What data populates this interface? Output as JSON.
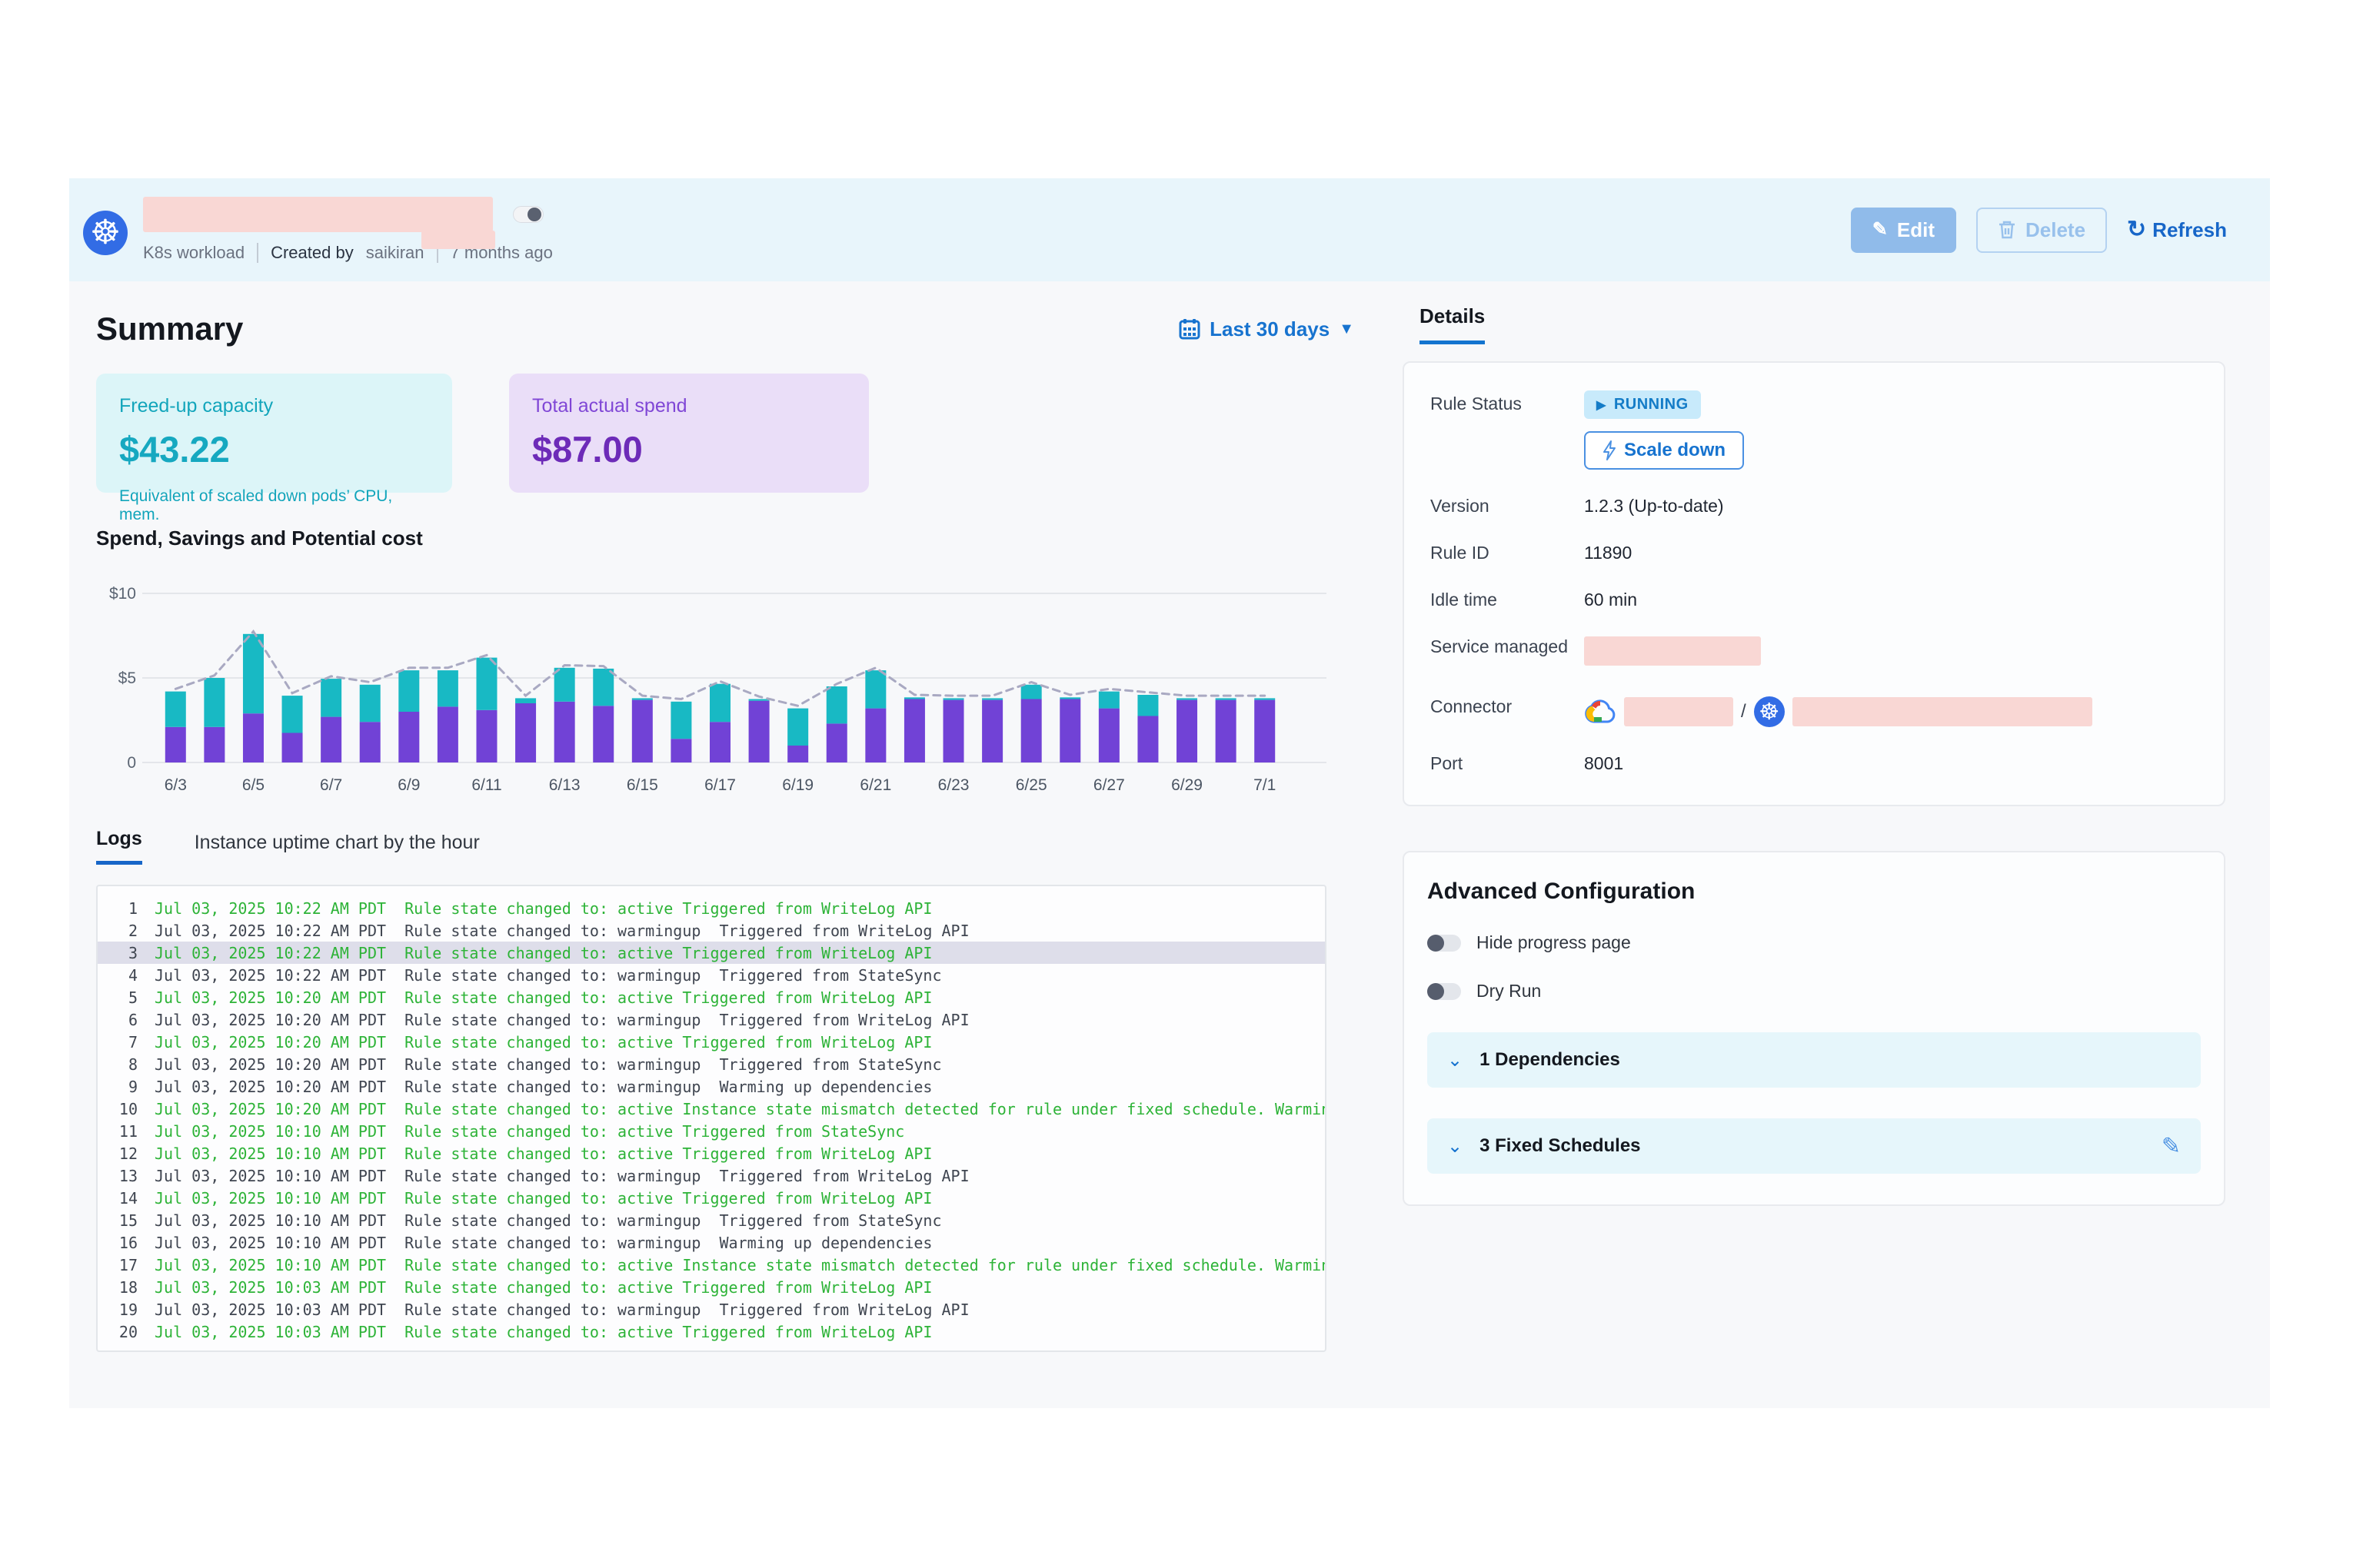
{
  "header": {
    "workload_type": "K8s workload",
    "created_by_label": "Created by",
    "created_by": "saikiran",
    "age": "7 months ago",
    "edit_label": "Edit",
    "delete_label": "Delete",
    "refresh_label": "Refresh"
  },
  "summary": {
    "title": "Summary",
    "date_range": "Last 30 days",
    "cards": {
      "freed": {
        "label": "Freed-up capacity",
        "value": "$43.22",
        "caption": "Equivalent of scaled down pods’ CPU, mem."
      },
      "spend": {
        "label": "Total actual spend",
        "value": "$87.00"
      }
    }
  },
  "chart_data": {
    "type": "bar",
    "title": "Spend, Savings and Potential cost",
    "stacked": true,
    "x": [
      "6/3",
      "6/4",
      "6/5",
      "6/6",
      "6/7",
      "6/8",
      "6/9",
      "6/10",
      "6/11",
      "6/12",
      "6/13",
      "6/14",
      "6/15",
      "6/16",
      "6/17",
      "6/18",
      "6/19",
      "6/20",
      "6/21",
      "6/22",
      "6/23",
      "6/24",
      "6/25",
      "6/26",
      "6/27",
      "6/28",
      "6/29",
      "6/30",
      "7/1"
    ],
    "x_tick_labels": [
      "6/3",
      "6/5",
      "6/7",
      "6/9",
      "6/11",
      "6/13",
      "6/15",
      "6/17",
      "6/19",
      "6/21",
      "6/23",
      "6/25",
      "6/27",
      "6/29",
      "7/1"
    ],
    "series": [
      {
        "name": "Spend",
        "color": "#7142d6",
        "values": [
          2.1,
          2.1,
          2.9,
          1.75,
          2.7,
          2.4,
          3.0,
          3.3,
          3.1,
          3.5,
          3.6,
          3.35,
          3.7,
          1.4,
          2.4,
          3.65,
          1.0,
          2.3,
          3.2,
          3.75,
          3.7,
          3.7,
          3.75,
          3.75,
          3.2,
          2.75,
          3.7,
          3.7,
          3.7
        ]
      },
      {
        "name": "Savings",
        "color": "#18b9c4",
        "values": [
          2.1,
          2.9,
          4.7,
          2.2,
          2.25,
          2.2,
          2.45,
          2.15,
          3.1,
          0.3,
          2.0,
          2.2,
          0.1,
          2.2,
          2.25,
          0.1,
          2.2,
          2.2,
          2.25,
          0.1,
          0.1,
          0.1,
          0.85,
          0.1,
          1.0,
          1.25,
          0.1,
          0.1,
          0.1
        ]
      },
      {
        "name": "Potential cost",
        "type": "dashed-line",
        "color": "#a9a9c2",
        "values": [
          4.35,
          5.15,
          7.75,
          4.1,
          5.1,
          4.75,
          5.6,
          5.6,
          6.35,
          3.95,
          5.75,
          5.7,
          3.95,
          3.75,
          4.8,
          3.9,
          3.35,
          4.65,
          5.6,
          4.0,
          3.95,
          3.95,
          4.75,
          4.0,
          4.35,
          4.15,
          3.95,
          3.95,
          3.95
        ]
      }
    ],
    "ylim": [
      0,
      10
    ],
    "y_ticks": [
      "$10",
      "$5",
      "0"
    ],
    "grid": true,
    "legend": false
  },
  "tabs": {
    "logs": "Logs",
    "uptime": "Instance uptime chart by the hour"
  },
  "logs": [
    {
      "n": 1,
      "time": "Jul 03, 2025 10:22 AM PDT",
      "msg": "Rule state changed to: active Triggered from WriteLog API",
      "green": true,
      "highlight": false
    },
    {
      "n": 2,
      "time": "Jul 03, 2025 10:22 AM PDT",
      "msg": "Rule state changed to: warmingup  Triggered from WriteLog API",
      "green": false,
      "highlight": false
    },
    {
      "n": 3,
      "time": "Jul 03, 2025 10:22 AM PDT",
      "msg": "Rule state changed to: active Triggered from WriteLog API",
      "green": true,
      "highlight": true
    },
    {
      "n": 4,
      "time": "Jul 03, 2025 10:22 AM PDT",
      "msg": "Rule state changed to: warmingup  Triggered from StateSync",
      "green": false,
      "highlight": false
    },
    {
      "n": 5,
      "time": "Jul 03, 2025 10:20 AM PDT",
      "msg": "Rule state changed to: active Triggered from WriteLog API",
      "green": true,
      "highlight": false
    },
    {
      "n": 6,
      "time": "Jul 03, 2025 10:20 AM PDT",
      "msg": "Rule state changed to: warmingup  Triggered from WriteLog API",
      "green": false,
      "highlight": false
    },
    {
      "n": 7,
      "time": "Jul 03, 2025 10:20 AM PDT",
      "msg": "Rule state changed to: active Triggered from WriteLog API",
      "green": true,
      "highlight": false
    },
    {
      "n": 8,
      "time": "Jul 03, 2025 10:20 AM PDT",
      "msg": "Rule state changed to: warmingup  Triggered from StateSync",
      "green": false,
      "highlight": false
    },
    {
      "n": 9,
      "time": "Jul 03, 2025 10:20 AM PDT",
      "msg": "Rule state changed to: warmingup  Warming up dependencies",
      "green": false,
      "highlight": false
    },
    {
      "n": 10,
      "time": "Jul 03, 2025 10:20 AM PDT",
      "msg": "Rule state changed to: active Instance state mismatch detected for rule under fixed schedule. Warming up",
      "green": true,
      "highlight": false
    },
    {
      "n": 11,
      "time": "Jul 03, 2025 10:10 AM PDT",
      "msg": "Rule state changed to: active Triggered from StateSync",
      "green": true,
      "highlight": false
    },
    {
      "n": 12,
      "time": "Jul 03, 2025 10:10 AM PDT",
      "msg": "Rule state changed to: active Triggered from WriteLog API",
      "green": true,
      "highlight": false
    },
    {
      "n": 13,
      "time": "Jul 03, 2025 10:10 AM PDT",
      "msg": "Rule state changed to: warmingup  Triggered from WriteLog API",
      "green": false,
      "highlight": false
    },
    {
      "n": 14,
      "time": "Jul 03, 2025 10:10 AM PDT",
      "msg": "Rule state changed to: active Triggered from WriteLog API",
      "green": true,
      "highlight": false
    },
    {
      "n": 15,
      "time": "Jul 03, 2025 10:10 AM PDT",
      "msg": "Rule state changed to: warmingup  Triggered from StateSync",
      "green": false,
      "highlight": false
    },
    {
      "n": 16,
      "time": "Jul 03, 2025 10:10 AM PDT",
      "msg": "Rule state changed to: warmingup  Warming up dependencies",
      "green": false,
      "highlight": false
    },
    {
      "n": 17,
      "time": "Jul 03, 2025 10:10 AM PDT",
      "msg": "Rule state changed to: active Instance state mismatch detected for rule under fixed schedule. Warming up",
      "green": true,
      "highlight": false
    },
    {
      "n": 18,
      "time": "Jul 03, 2025 10:03 AM PDT",
      "msg": "Rule state changed to: active Triggered from WriteLog API",
      "green": true,
      "highlight": false
    },
    {
      "n": 19,
      "time": "Jul 03, 2025 10:03 AM PDT",
      "msg": "Rule state changed to: warmingup  Triggered from WriteLog API",
      "green": false,
      "highlight": false
    },
    {
      "n": 20,
      "time": "Jul 03, 2025 10:03 AM PDT",
      "msg": "Rule state changed to: active Triggered from WriteLog API",
      "green": true,
      "highlight": false
    }
  ],
  "details": {
    "tab_label": "Details",
    "rule_status_label": "Rule Status",
    "running_label": "RUNNING",
    "scale_down_label": "Scale down",
    "version_label": "Version",
    "version": "1.2.3 (Up-to-date)",
    "rule_id_label": "Rule ID",
    "rule_id": "11890",
    "idle_label": "Idle time",
    "idle": "60 min",
    "service_label": "Service managed",
    "connector_label": "Connector",
    "connector_separator": "/",
    "port_label": "Port",
    "port": "8001"
  },
  "advanced": {
    "title": "Advanced Configuration",
    "hide_progress_label": "Hide progress page",
    "dry_run_label": "Dry Run",
    "dependencies_label": "1 Dependencies",
    "schedules_label": "3 Fixed Schedules"
  },
  "colors": {
    "accent_blue": "#1773cf",
    "header_band": "#e8f5fb",
    "content_bg": "#f7f8fa",
    "redaction_pink": "#f9d7d4",
    "bar_purple": "#7142d6",
    "bar_teal": "#18b9c4",
    "log_green": "#2db337",
    "k8s_blue": "#326ce5"
  }
}
